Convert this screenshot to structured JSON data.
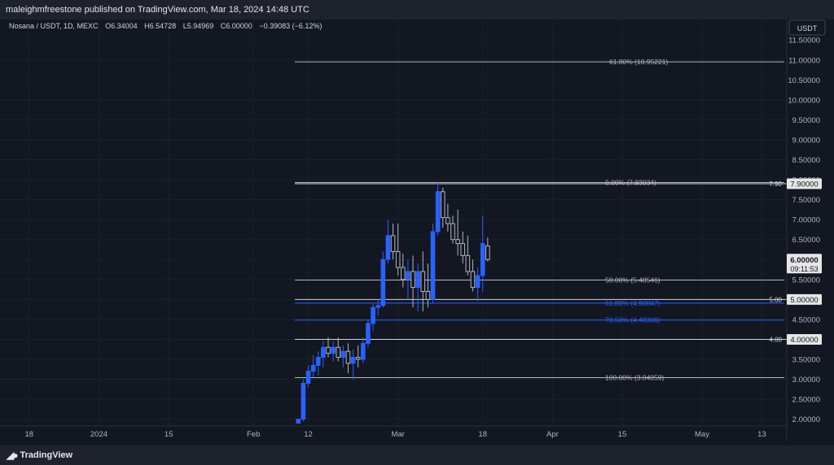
{
  "header": {
    "publish_line": "maleighmfreestone published on TradingView.com, Mar 18, 2024 14:48 UTC"
  },
  "legend": {
    "symbol": "Nosana / USDT, 1D, MEXC",
    "open_label": "O",
    "open": "6.34004",
    "high_label": "H",
    "high": "6.54728",
    "low_label": "L",
    "low": "5.94969",
    "close_label": "C",
    "close": "6.00000",
    "change": "−0.39083 (−6.12%)"
  },
  "price_axis": {
    "currency": "USDT",
    "current_price": "6.00000",
    "countdown": "09:11:53"
  },
  "colors": {
    "background": "#131722",
    "panel": "#1e222d",
    "fib_blue": "#2962ff",
    "fib_gray": "#b2b5be",
    "candle_up": "#2962ff",
    "candle_down": "#b2b5be"
  },
  "footer": {
    "brand": "TradingView",
    "icon": "tradingview-logo-icon"
  },
  "chart_data": {
    "type": "candlestick",
    "ylim": [
      1.9,
      11.65
    ],
    "y_ticks": [
      "11.50000",
      "11.00000",
      "10.50000",
      "10.00000",
      "9.50000",
      "9.00000",
      "8.50000",
      "8.00000",
      "7.50000",
      "7.00000",
      "6.50000",
      "6.00000",
      "5.50000",
      "5.00000",
      "4.50000",
      "4.00000",
      "3.50000",
      "3.00000",
      "2.50000",
      "2.00000"
    ],
    "x_ticks": [
      "18",
      "2024",
      "15",
      "Feb",
      "12",
      "Mar",
      "18",
      "Apr",
      "15",
      "May",
      "13"
    ],
    "x_tick_dates": [
      "2023-12-18",
      "2024-01-01",
      "2024-01-15",
      "2024-02-01",
      "2024-02-12",
      "2024-03-01",
      "2024-03-18",
      "2024-04-01",
      "2024-04-15",
      "2024-05-01",
      "2024-05-13"
    ],
    "candles": [
      {
        "date": "2024-02-10",
        "o": 1.9,
        "h": 2.0,
        "l": 1.9,
        "c": 2.0
      },
      {
        "date": "2024-02-11",
        "o": 2.0,
        "h": 3.0,
        "l": 1.95,
        "c": 2.9
      },
      {
        "date": "2024-02-12",
        "o": 2.9,
        "h": 3.35,
        "l": 2.8,
        "c": 3.2
      },
      {
        "date": "2024-02-13",
        "o": 3.2,
        "h": 3.6,
        "l": 3.05,
        "c": 3.35
      },
      {
        "date": "2024-02-14",
        "o": 3.35,
        "h": 3.7,
        "l": 3.1,
        "c": 3.55
      },
      {
        "date": "2024-02-15",
        "o": 3.55,
        "h": 3.95,
        "l": 3.3,
        "c": 3.8
      },
      {
        "date": "2024-02-16",
        "o": 3.8,
        "h": 4.05,
        "l": 3.55,
        "c": 3.65
      },
      {
        "date": "2024-02-17",
        "o": 3.65,
        "h": 3.95,
        "l": 3.45,
        "c": 3.8
      },
      {
        "date": "2024-02-18",
        "o": 3.8,
        "h": 4.05,
        "l": 3.45,
        "c": 3.55
      },
      {
        "date": "2024-02-19",
        "o": 3.55,
        "h": 3.85,
        "l": 3.3,
        "c": 3.7
      },
      {
        "date": "2024-02-20",
        "o": 3.7,
        "h": 3.9,
        "l": 3.15,
        "c": 3.4
      },
      {
        "date": "2024-02-21",
        "o": 3.4,
        "h": 3.75,
        "l": 3.0,
        "c": 3.55
      },
      {
        "date": "2024-02-22",
        "o": 3.55,
        "h": 3.85,
        "l": 3.3,
        "c": 3.5
      },
      {
        "date": "2024-02-23",
        "o": 3.5,
        "h": 4.05,
        "l": 3.4,
        "c": 3.9
      },
      {
        "date": "2024-02-24",
        "o": 3.9,
        "h": 4.5,
        "l": 3.8,
        "c": 4.4
      },
      {
        "date": "2024-02-25",
        "o": 4.4,
        "h": 4.9,
        "l": 4.2,
        "c": 4.8
      },
      {
        "date": "2024-02-26",
        "o": 4.8,
        "h": 5.0,
        "l": 4.6,
        "c": 4.85
      },
      {
        "date": "2024-02-27",
        "o": 4.85,
        "h": 6.2,
        "l": 4.8,
        "c": 6.0
      },
      {
        "date": "2024-02-28",
        "o": 6.0,
        "h": 7.0,
        "l": 5.9,
        "c": 6.6
      },
      {
        "date": "2024-02-29",
        "o": 6.6,
        "h": 6.9,
        "l": 6.0,
        "c": 6.2
      },
      {
        "date": "2024-03-01",
        "o": 6.2,
        "h": 6.9,
        "l": 5.6,
        "c": 5.8
      },
      {
        "date": "2024-03-02",
        "o": 5.8,
        "h": 6.15,
        "l": 5.3,
        "c": 5.5
      },
      {
        "date": "2024-03-03",
        "o": 5.5,
        "h": 6.0,
        "l": 5.0,
        "c": 5.7
      },
      {
        "date": "2024-03-04",
        "o": 5.7,
        "h": 6.1,
        "l": 4.8,
        "c": 5.3
      },
      {
        "date": "2024-03-05",
        "o": 5.3,
        "h": 5.9,
        "l": 4.7,
        "c": 5.7
      },
      {
        "date": "2024-03-06",
        "o": 5.7,
        "h": 6.2,
        "l": 4.7,
        "c": 5.2
      },
      {
        "date": "2024-03-07",
        "o": 5.2,
        "h": 5.9,
        "l": 4.8,
        "c": 5.0
      },
      {
        "date": "2024-03-08",
        "o": 5.0,
        "h": 6.9,
        "l": 4.9,
        "c": 6.7
      },
      {
        "date": "2024-03-09",
        "o": 6.7,
        "h": 7.93,
        "l": 6.6,
        "c": 7.7
      },
      {
        "date": "2024-03-10",
        "o": 7.7,
        "h": 7.8,
        "l": 6.8,
        "c": 7.05
      },
      {
        "date": "2024-03-11",
        "o": 7.05,
        "h": 7.4,
        "l": 6.7,
        "c": 6.9
      },
      {
        "date": "2024-03-12",
        "o": 6.9,
        "h": 7.1,
        "l": 6.4,
        "c": 6.5
      },
      {
        "date": "2024-03-13",
        "o": 6.5,
        "h": 7.25,
        "l": 6.1,
        "c": 6.4
      },
      {
        "date": "2024-03-14",
        "o": 6.4,
        "h": 6.7,
        "l": 5.9,
        "c": 6.1
      },
      {
        "date": "2024-03-15",
        "o": 6.1,
        "h": 6.6,
        "l": 5.6,
        "c": 5.7
      },
      {
        "date": "2024-03-16",
        "o": 5.7,
        "h": 6.0,
        "l": 5.2,
        "c": 5.3
      },
      {
        "date": "2024-03-17",
        "o": 5.3,
        "h": 5.8,
        "l": 4.95,
        "c": 5.6
      },
      {
        "date": "2024-03-18",
        "o": 5.6,
        "h": 7.1,
        "l": 5.2,
        "c": 6.4
      },
      {
        "date": "2024-03-19",
        "o": 6.34,
        "h": 6.55,
        "l": 5.95,
        "c": 6.0
      }
    ],
    "fib_levels": [
      {
        "label": "−61.80% (10.95221)",
        "value": 10.95221,
        "color": "#b2b5be"
      },
      {
        "label": "0.00% (7.93034)",
        "value": 7.93034,
        "color": "#b2b5be"
      },
      {
        "label": "50.00% (5.48546)",
        "value": 5.48546,
        "color": "#b2b5be"
      },
      {
        "label": "61.80% (4.90847)",
        "value": 4.90847,
        "color": "#2962ff"
      },
      {
        "label": "70.50% (4.48306)",
        "value": 4.48306,
        "color": "#2962ff"
      },
      {
        "label": "100.00% (3.04059)",
        "value": 3.04059,
        "color": "#b2b5be"
      }
    ],
    "horizontal_lines": [
      {
        "label": "7.90",
        "value": 7.9,
        "axis_label": "7.90000"
      },
      {
        "label": "5.00",
        "value": 5.0,
        "axis_label": "5.00000"
      },
      {
        "label": "4.00",
        "value": 4.0,
        "axis_label": "4.00000"
      }
    ]
  }
}
